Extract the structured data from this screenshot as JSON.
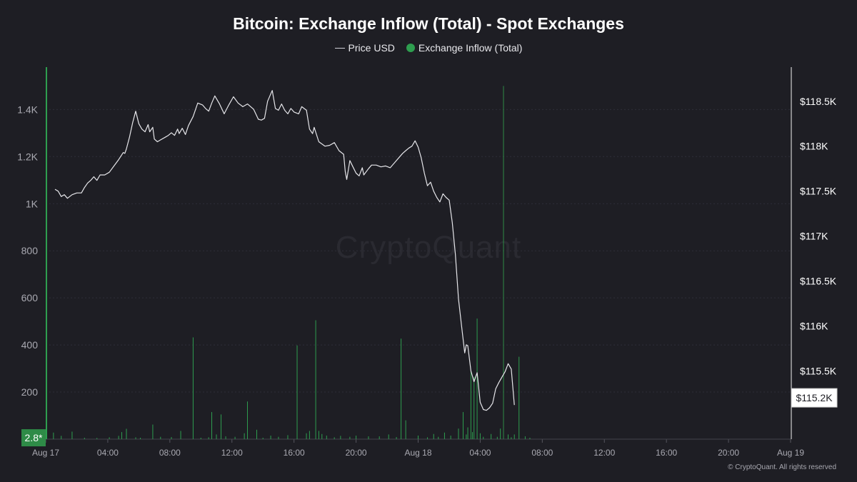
{
  "chart_data": {
    "type": "line",
    "title": "Bitcoin: Exchange Inflow (Total) - Spot Exchanges",
    "legend": {
      "placement": "top-center",
      "entries": [
        "Price USD",
        "Exchange Inflow (Total)"
      ]
    },
    "watermark": "CryptoQuant",
    "copyright": "© CryptoQuant. All rights reserved",
    "x_axis": {
      "unit": "hours since Aug 17 00:00",
      "range": [
        0,
        48
      ],
      "ticks": [
        {
          "x": 0,
          "label": "Aug 17"
        },
        {
          "x": 4,
          "label": "04:00"
        },
        {
          "x": 8,
          "label": "08:00"
        },
        {
          "x": 12,
          "label": "12:00"
        },
        {
          "x": 16,
          "label": "16:00"
        },
        {
          "x": 20,
          "label": "20:00"
        },
        {
          "x": 24,
          "label": "Aug 18"
        },
        {
          "x": 28,
          "label": "04:00"
        },
        {
          "x": 32,
          "label": "08:00"
        },
        {
          "x": 36,
          "label": "12:00"
        },
        {
          "x": 40,
          "label": "16:00"
        },
        {
          "x": 44,
          "label": "20:00"
        },
        {
          "x": 48,
          "label": "Aug 19"
        }
      ]
    },
    "y_axis_left": {
      "range": [
        0,
        1580
      ],
      "ticks": [
        {
          "v": 200,
          "label": "200"
        },
        {
          "v": 400,
          "label": "400"
        },
        {
          "v": 600,
          "label": "600"
        },
        {
          "v": 800,
          "label": "800"
        },
        {
          "v": 1000,
          "label": "1K"
        },
        {
          "v": 1200,
          "label": "1.2K"
        },
        {
          "v": 1400,
          "label": "1.4K"
        }
      ],
      "current_label": "2.8*",
      "current_value": 2.8
    },
    "y_axis_right": {
      "range": [
        114740,
        118880
      ],
      "ticks": [
        {
          "v": 115500,
          "label": "$115.5K"
        },
        {
          "v": 116000,
          "label": "$116K"
        },
        {
          "v": 116500,
          "label": "$116.5K"
        },
        {
          "v": 117000,
          "label": "$117K"
        },
        {
          "v": 117500,
          "label": "$117.5K"
        },
        {
          "v": 118000,
          "label": "$118K"
        },
        {
          "v": 118500,
          "label": "$118.5K"
        }
      ],
      "current_label": "$115.2K",
      "current_value": 115200
    },
    "grid": true,
    "colors": {
      "price": "#e6e6ea",
      "inflow": "#2e9e4f",
      "inflow_highlight": "#2e8b47",
      "grid": "#2f2f38",
      "axis_text": "#a9a9b1",
      "right_axis_text": "#ffffff",
      "background": "#1e1e24"
    },
    "series": [
      {
        "name": "Price USD",
        "axis": "right",
        "points": [
          [
            0.6,
            117520
          ],
          [
            0.8,
            117500
          ],
          [
            1.0,
            117440
          ],
          [
            1.2,
            117460
          ],
          [
            1.4,
            117420
          ],
          [
            1.7,
            117460
          ],
          [
            2.0,
            117480
          ],
          [
            2.3,
            117480
          ],
          [
            2.5,
            117540
          ],
          [
            2.7,
            117590
          ],
          [
            2.9,
            117620
          ],
          [
            3.1,
            117660
          ],
          [
            3.3,
            117620
          ],
          [
            3.5,
            117680
          ],
          [
            3.8,
            117680
          ],
          [
            4.1,
            117710
          ],
          [
            4.4,
            117780
          ],
          [
            4.7,
            117850
          ],
          [
            5.0,
            117930
          ],
          [
            5.1,
            117920
          ],
          [
            5.2,
            117970
          ],
          [
            5.4,
            118100
          ],
          [
            5.6,
            118260
          ],
          [
            5.8,
            118390
          ],
          [
            6.0,
            118250
          ],
          [
            6.2,
            118190
          ],
          [
            6.4,
            118160
          ],
          [
            6.6,
            118240
          ],
          [
            6.7,
            118160
          ],
          [
            6.9,
            118210
          ],
          [
            7.0,
            118080
          ],
          [
            7.2,
            118050
          ],
          [
            7.4,
            118070
          ],
          [
            7.7,
            118100
          ],
          [
            7.9,
            118120
          ],
          [
            8.1,
            118150
          ],
          [
            8.3,
            118120
          ],
          [
            8.5,
            118190
          ],
          [
            8.6,
            118140
          ],
          [
            8.8,
            118200
          ],
          [
            9.0,
            118130
          ],
          [
            9.2,
            118230
          ],
          [
            9.5,
            118330
          ],
          [
            9.8,
            118480
          ],
          [
            10.1,
            118460
          ],
          [
            10.3,
            118420
          ],
          [
            10.5,
            118390
          ],
          [
            10.7,
            118480
          ],
          [
            10.9,
            118560
          ],
          [
            11.2,
            118470
          ],
          [
            11.5,
            118360
          ],
          [
            11.8,
            118460
          ],
          [
            12.1,
            118550
          ],
          [
            12.4,
            118480
          ],
          [
            12.7,
            118440
          ],
          [
            13.0,
            118470
          ],
          [
            13.4,
            118410
          ],
          [
            13.7,
            118300
          ],
          [
            13.9,
            118290
          ],
          [
            14.1,
            118310
          ],
          [
            14.3,
            118500
          ],
          [
            14.6,
            118620
          ],
          [
            14.8,
            118420
          ],
          [
            15.0,
            118400
          ],
          [
            15.2,
            118470
          ],
          [
            15.4,
            118400
          ],
          [
            15.6,
            118360
          ],
          [
            15.8,
            118420
          ],
          [
            16.0,
            118380
          ],
          [
            16.3,
            118360
          ],
          [
            16.5,
            118440
          ],
          [
            16.8,
            118400
          ],
          [
            17.0,
            118190
          ],
          [
            17.2,
            118140
          ],
          [
            17.3,
            118210
          ],
          [
            17.6,
            118050
          ],
          [
            18.0,
            118000
          ],
          [
            18.3,
            118010
          ],
          [
            18.6,
            118040
          ],
          [
            18.9,
            117950
          ],
          [
            19.2,
            117910
          ],
          [
            19.3,
            117720
          ],
          [
            19.4,
            117630
          ],
          [
            19.6,
            117840
          ],
          [
            19.8,
            117770
          ],
          [
            20.0,
            117700
          ],
          [
            20.2,
            117670
          ],
          [
            20.4,
            117760
          ],
          [
            20.5,
            117680
          ],
          [
            20.8,
            117750
          ],
          [
            21.0,
            117790
          ],
          [
            21.3,
            117790
          ],
          [
            21.6,
            117770
          ],
          [
            21.9,
            117780
          ],
          [
            22.2,
            117760
          ],
          [
            22.5,
            117820
          ],
          [
            22.8,
            117880
          ],
          [
            23.0,
            117920
          ],
          [
            23.2,
            117950
          ],
          [
            23.4,
            117980
          ],
          [
            23.6,
            118000
          ],
          [
            23.8,
            118060
          ],
          [
            24.0,
            117990
          ],
          [
            24.2,
            117870
          ],
          [
            24.4,
            117700
          ],
          [
            24.6,
            117560
          ],
          [
            24.8,
            117600
          ],
          [
            25.0,
            117500
          ],
          [
            25.2,
            117430
          ],
          [
            25.4,
            117380
          ],
          [
            25.6,
            117470
          ],
          [
            25.8,
            117430
          ],
          [
            26.0,
            117400
          ],
          [
            26.2,
            117150
          ],
          [
            26.4,
            116800
          ],
          [
            26.6,
            116300
          ],
          [
            26.8,
            116000
          ],
          [
            27.0,
            115700
          ],
          [
            27.1,
            115790
          ],
          [
            27.2,
            115780
          ],
          [
            27.4,
            115500
          ],
          [
            27.6,
            115380
          ],
          [
            27.8,
            115480
          ],
          [
            28.0,
            115150
          ],
          [
            28.2,
            115070
          ],
          [
            28.4,
            115060
          ],
          [
            28.6,
            115090
          ],
          [
            28.8,
            115140
          ],
          [
            29.0,
            115300
          ],
          [
            29.2,
            115370
          ],
          [
            29.4,
            115430
          ],
          [
            29.6,
            115490
          ],
          [
            29.8,
            115580
          ],
          [
            30.0,
            115520
          ],
          [
            30.2,
            115120
          ]
        ]
      },
      {
        "name": "Exchange Inflow (Total)",
        "axis": "left",
        "bars": [
          [
            0.5,
            28
          ],
          [
            1.0,
            14
          ],
          [
            1.7,
            32
          ],
          [
            2.5,
            6
          ],
          [
            3.3,
            5
          ],
          [
            4.1,
            8
          ],
          [
            4.7,
            14
          ],
          [
            4.9,
            30
          ],
          [
            5.2,
            44
          ],
          [
            5.8,
            8
          ],
          [
            6.1,
            6
          ],
          [
            6.9,
            62
          ],
          [
            7.4,
            10
          ],
          [
            8.1,
            9
          ],
          [
            8.7,
            35
          ],
          [
            9.5,
            432
          ],
          [
            10.0,
            6
          ],
          [
            10.5,
            8
          ],
          [
            10.7,
            115
          ],
          [
            11.0,
            20
          ],
          [
            11.3,
            105
          ],
          [
            11.6,
            12
          ],
          [
            12.2,
            10
          ],
          [
            12.8,
            25
          ],
          [
            13.0,
            160
          ],
          [
            13.6,
            40
          ],
          [
            14.0,
            6
          ],
          [
            14.5,
            15
          ],
          [
            15.0,
            10
          ],
          [
            15.6,
            17
          ],
          [
            16.2,
            398
          ],
          [
            16.8,
            25
          ],
          [
            17.0,
            35
          ],
          [
            17.4,
            505
          ],
          [
            17.6,
            35
          ],
          [
            17.8,
            22
          ],
          [
            18.1,
            15
          ],
          [
            18.6,
            8
          ],
          [
            19.0,
            14
          ],
          [
            19.6,
            10
          ],
          [
            20.0,
            15
          ],
          [
            20.8,
            12
          ],
          [
            21.5,
            12
          ],
          [
            22.1,
            20
          ],
          [
            22.6,
            9
          ],
          [
            22.9,
            427
          ],
          [
            23.2,
            80
          ],
          [
            24.0,
            15
          ],
          [
            24.6,
            8
          ],
          [
            25.0,
            22
          ],
          [
            25.3,
            10
          ],
          [
            25.7,
            28
          ],
          [
            26.1,
            15
          ],
          [
            26.6,
            45
          ],
          [
            26.9,
            115
          ],
          [
            27.1,
            20
          ],
          [
            27.2,
            50
          ],
          [
            27.4,
            290
          ],
          [
            27.5,
            30
          ],
          [
            27.6,
            265
          ],
          [
            27.8,
            512
          ],
          [
            28.0,
            25
          ],
          [
            28.2,
            10
          ],
          [
            28.7,
            22
          ],
          [
            29.1,
            10
          ],
          [
            29.3,
            45
          ],
          [
            29.5,
            1500
          ],
          [
            29.8,
            20
          ],
          [
            30.0,
            8
          ],
          [
            30.2,
            20
          ],
          [
            30.5,
            350
          ],
          [
            30.9,
            12
          ],
          [
            31.2,
            6
          ]
        ],
        "highlight_bar": {
          "x": 29.5,
          "v": 1500
        }
      }
    ]
  }
}
